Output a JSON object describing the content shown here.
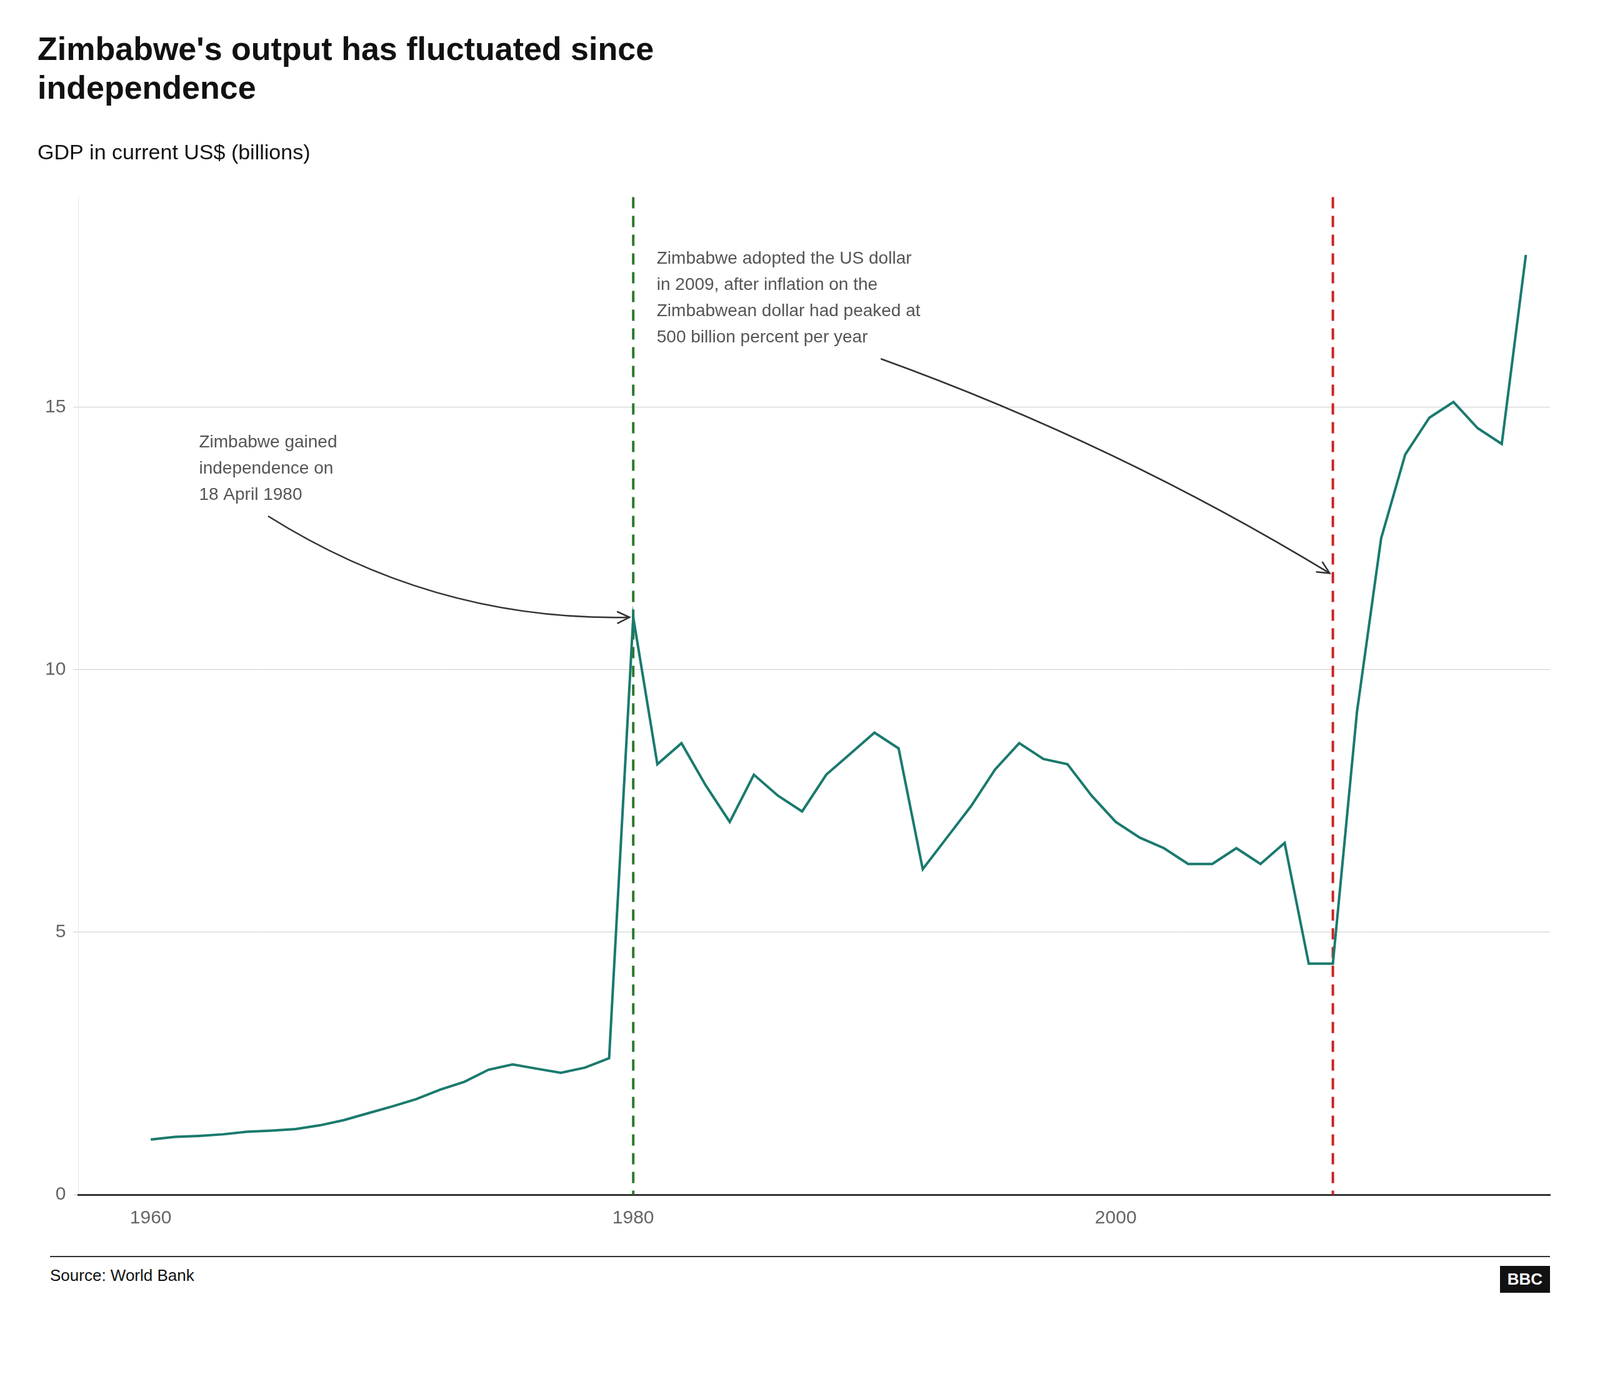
{
  "chart_data": {
    "type": "line",
    "title": "Zimbabwe's output has fluctuated since\nindependence",
    "subtitle": "GDP in current US$ (billions)",
    "source": "Source: World Bank",
    "logo": "BBC",
    "x": [
      1960,
      1961,
      1962,
      1963,
      1964,
      1965,
      1966,
      1967,
      1968,
      1969,
      1970,
      1971,
      1972,
      1973,
      1974,
      1975,
      1976,
      1977,
      1978,
      1979,
      1980,
      1981,
      1982,
      1983,
      1984,
      1985,
      1986,
      1987,
      1988,
      1989,
      1990,
      1991,
      1992,
      1993,
      1994,
      1995,
      1996,
      1997,
      1998,
      1999,
      2000,
      2001,
      2002,
      2003,
      2004,
      2005,
      2006,
      2007,
      2008,
      2009,
      2010,
      2011,
      2012,
      2013,
      2014,
      2015,
      2016,
      2017
    ],
    "values": [
      1.05,
      1.1,
      1.12,
      1.15,
      1.2,
      1.22,
      1.25,
      1.32,
      1.42,
      1.55,
      1.68,
      1.82,
      2.0,
      2.15,
      2.38,
      2.48,
      2.4,
      2.32,
      2.42,
      2.6,
      11.0,
      8.2,
      8.6,
      7.8,
      7.1,
      8.0,
      7.6,
      7.3,
      8.0,
      8.4,
      8.8,
      8.5,
      6.2,
      6.8,
      7.4,
      8.1,
      8.6,
      8.3,
      8.2,
      7.6,
      7.1,
      6.8,
      6.6,
      6.3,
      6.3,
      6.6,
      6.3,
      6.7,
      4.4,
      4.4,
      9.2,
      12.5,
      14.1,
      14.8,
      15.1,
      14.6,
      14.3,
      17.9
    ],
    "color": "#1a7a6e",
    "marker": "none",
    "xlim": [
      1957,
      2018
    ],
    "xticks": [
      1960,
      1980,
      2000
    ],
    "ylim": [
      0,
      19
    ],
    "yticks": [
      0,
      5,
      10,
      15
    ],
    "grid": true,
    "vlines": [
      {
        "x": 1980,
        "color": "#2d7a2d",
        "line_style": "dashed"
      },
      {
        "x": 2009,
        "color": "#cc2222",
        "line_style": "dashed"
      }
    ],
    "annotations": [
      {
        "text": "Zimbabwe gained\nindependence on\n18 April 1980",
        "x": 1980,
        "y": 11.0
      },
      {
        "text": "Zimbabwe adopted the US dollar\nin 2009, after inflation on the\nZimbabwean dollar had peaked at\n500 billion percent per year",
        "x": 2009,
        "y": 11.8
      }
    ]
  }
}
